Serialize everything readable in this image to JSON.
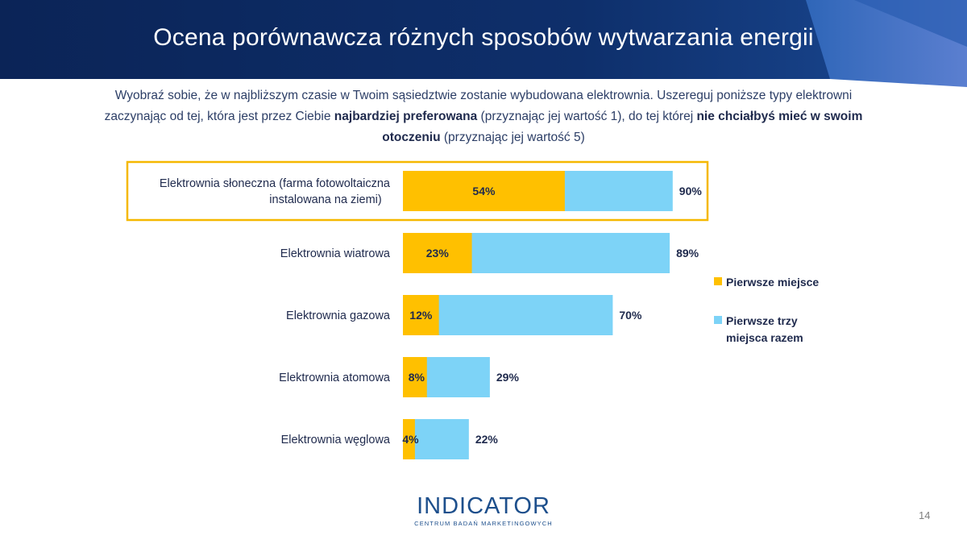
{
  "header": {
    "title": "Ocena porównawcza różnych sposobów wytwarzania energii"
  },
  "question": {
    "part1": "Wyobraź sobie, że w najbliższym czasie w Twoim sąsiedztwie zostanie wybudowana elektrownia. Uszereguj poniższe typy elektrowni zaczynając od tej, która jest przez Ciebie ",
    "bold1": "najbardziej preferowana",
    "part2": " (przyznając jej wartość 1), do tej której ",
    "bold2": "nie chciałbyś mieć w swoim otoczeniu",
    "part3": " (przyznając jej wartość 5)"
  },
  "chart_data": {
    "type": "bar",
    "orientation": "horizontal",
    "categories": [
      "Elektrownia słoneczna (farma fotowoltaiczna instalowana na ziemi)",
      "Elektrownia wiatrowa",
      "Elektrownia gazowa",
      "Elektrownia atomowa",
      "Elektrownia węglowa"
    ],
    "series": [
      {
        "name": "Pierwsze miejsce",
        "values": [
          54,
          23,
          12,
          8,
          4
        ],
        "color": "#ffc000"
      },
      {
        "name": "Pierwsze trzy miejsca razem",
        "values": [
          90,
          89,
          70,
          29,
          22
        ],
        "color": "#7dd3f7"
      }
    ],
    "data_labels": {
      "first": [
        "54%",
        "23%",
        "12%",
        "8%",
        "4%"
      ],
      "top3": [
        "90%",
        "89%",
        "70%",
        "29%",
        "22%"
      ]
    },
    "xlim": [
      0,
      100
    ],
    "grid": false,
    "legend_position": "right",
    "highlight_category": "Elektrownia słoneczna (farma fotowoltaiczna instalowana na ziemi)",
    "highlight_color": "#f5b800"
  },
  "legend": {
    "first_label": "Pierwsze miejsce",
    "top3_label": "Pierwsze trzy miejsca razem"
  },
  "logo": {
    "text": "INDICATOR",
    "subtitle": "CENTRUM BADAŃ MARKETINGOWYCH"
  },
  "page_number": "14",
  "colors": {
    "header_dark": "#0d2a5c",
    "header_accent": "#3a6fc0",
    "text_dark": "#1f2a4d"
  }
}
